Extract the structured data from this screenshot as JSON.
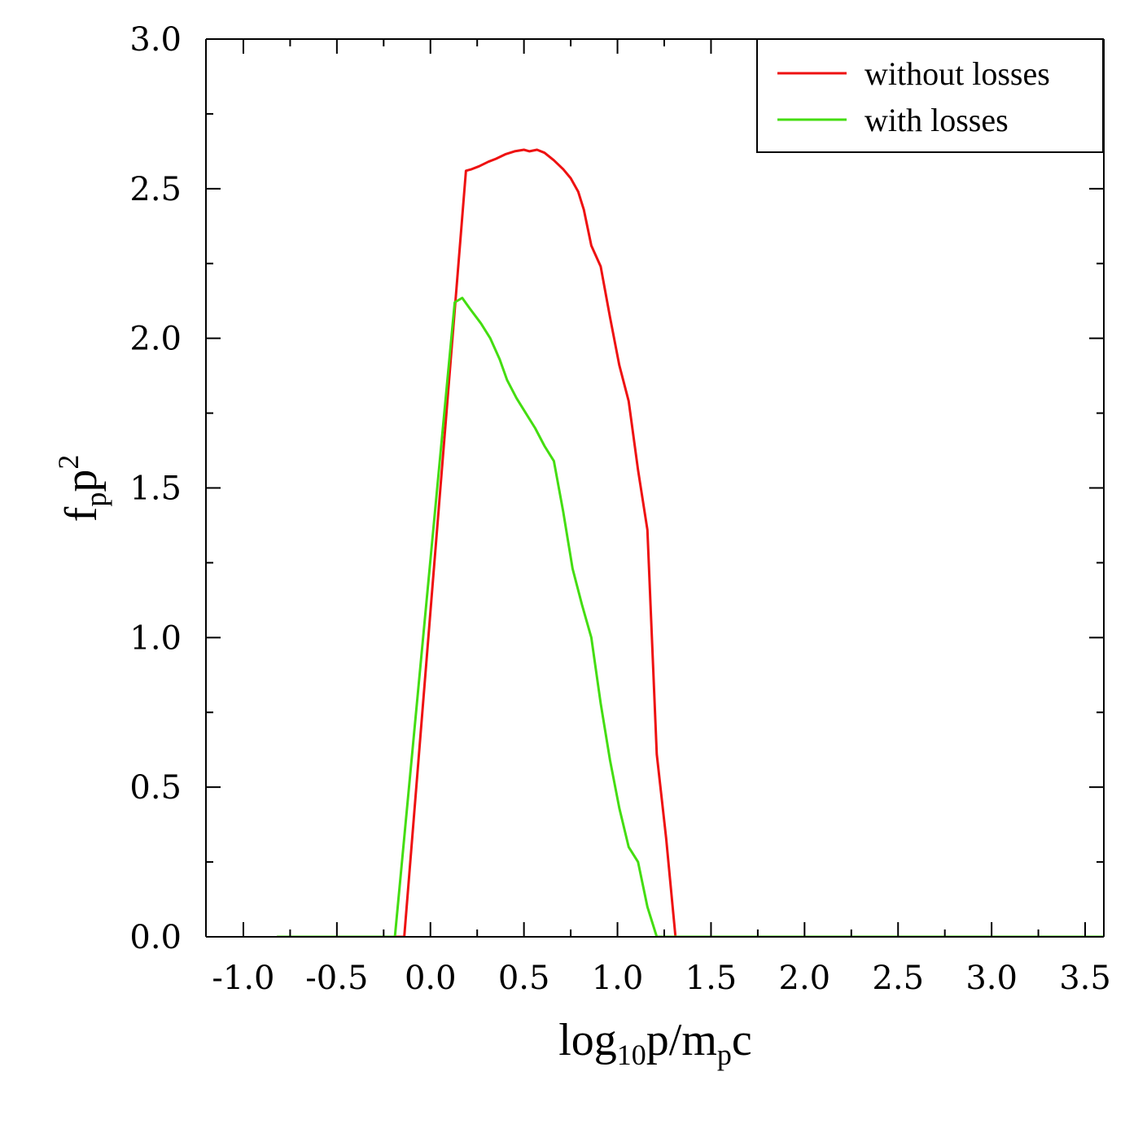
{
  "chart_data": {
    "type": "line",
    "title": "",
    "xlabel": {
      "base": "log",
      "sub": "10",
      "mid": "p/m",
      "sub2": "p",
      "end": "c"
    },
    "ylabel": {
      "base": "f",
      "sub": "p",
      "mid": "p",
      "sup": "2"
    },
    "xlim": [
      -1.2,
      3.6
    ],
    "ylim": [
      0.0,
      3.0
    ],
    "x_ticks": [
      "-1.0",
      "-0.5",
      "0.0",
      "0.5",
      "1.0",
      "1.5",
      "2.0",
      "2.5",
      "3.0",
      "3.5"
    ],
    "y_ticks": [
      "0.0",
      "0.5",
      "1.0",
      "1.5",
      "2.0",
      "2.5",
      "3.0"
    ],
    "legend_position": "top-right",
    "series": [
      {
        "name": "without losses",
        "color": "#ee1111",
        "x": [
          -0.82,
          -0.14,
          0.19,
          0.22,
          0.26,
          0.31,
          0.35,
          0.4,
          0.45,
          0.5,
          0.53,
          0.57,
          0.61,
          0.66,
          0.71,
          0.75,
          0.79,
          0.82,
          0.86,
          0.91,
          0.96,
          1.01,
          1.06,
          1.11,
          1.16,
          1.21,
          1.26,
          1.31,
          1.34,
          1.4,
          2.0,
          3.0,
          3.6
        ],
        "y": [
          0.0,
          0.0,
          2.56,
          2.565,
          2.575,
          2.59,
          2.6,
          2.615,
          2.625,
          2.63,
          2.625,
          2.63,
          2.62,
          2.595,
          2.565,
          2.535,
          2.49,
          2.43,
          2.31,
          2.24,
          2.07,
          1.91,
          1.79,
          1.56,
          1.36,
          0.61,
          0.33,
          0.0,
          0.0,
          0.0,
          0.0,
          0.0,
          0.0
        ]
      },
      {
        "name": "with losses",
        "color": "#44dd11",
        "x": [
          -0.82,
          -0.19,
          0.13,
          0.17,
          0.21,
          0.27,
          0.32,
          0.37,
          0.41,
          0.46,
          0.51,
          0.56,
          0.61,
          0.66,
          0.71,
          0.76,
          0.81,
          0.86,
          0.91,
          0.96,
          1.01,
          1.06,
          1.11,
          1.16,
          1.21,
          1.3,
          2.0,
          3.0,
          3.6
        ],
        "y": [
          0.0,
          0.0,
          2.12,
          2.135,
          2.1,
          2.05,
          2.0,
          1.93,
          1.86,
          1.8,
          1.75,
          1.7,
          1.64,
          1.59,
          1.42,
          1.23,
          1.11,
          1.0,
          0.78,
          0.59,
          0.43,
          0.3,
          0.25,
          0.1,
          0.0,
          0.0,
          0.0,
          0.0,
          0.0
        ]
      }
    ]
  }
}
